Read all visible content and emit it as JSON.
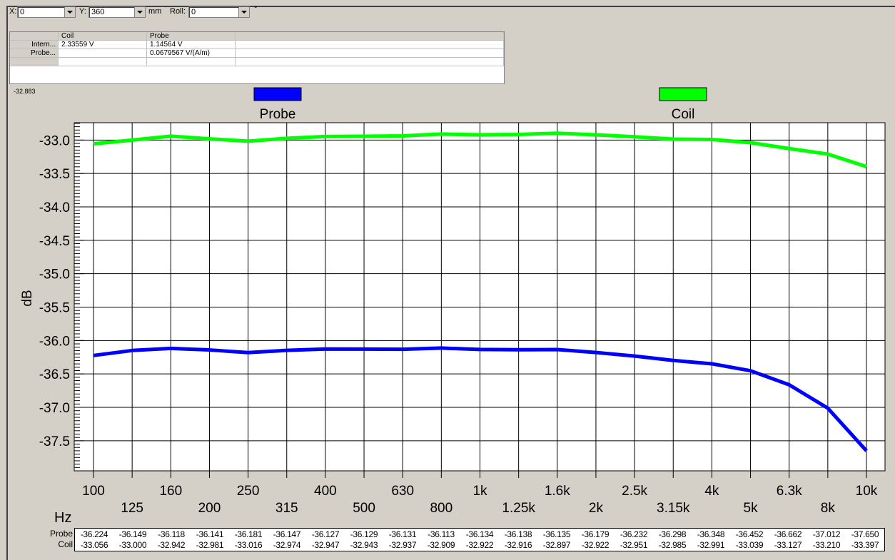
{
  "toolbar": {
    "x_label": "X:",
    "x_value": "0",
    "y_label": "Y:",
    "y_value": "360",
    "y_unit": "mm",
    "roll_label": "Roll:",
    "roll_value": "0",
    "roll_unit": "°"
  },
  "summary_table": {
    "headers": [
      "",
      "Coil",
      "Probe",
      ""
    ],
    "rows": [
      [
        "Intern...",
        "2.33559 V",
        "1.14564 V",
        ""
      ],
      [
        "Probe...",
        "",
        "0.0679567 V/(A/m)",
        ""
      ],
      [
        "",
        "",
        "",
        ""
      ]
    ]
  },
  "corner_value": "-32.883",
  "colors": {
    "probe": "#0000ff",
    "coil": "#00ff00"
  },
  "chart_data": {
    "type": "line",
    "x": [
      "100",
      "125",
      "160",
      "200",
      "250",
      "315",
      "400",
      "500",
      "630",
      "800",
      "1k",
      "1.25k",
      "1.6k",
      "2k",
      "2.5k",
      "3.15k",
      "4k",
      "5k",
      "6.3k",
      "8k",
      "10k"
    ],
    "series": [
      {
        "name": "Probe",
        "values": [
          -36.224,
          -36.149,
          -36.118,
          -36.141,
          -36.181,
          -36.147,
          -36.127,
          -36.129,
          -36.131,
          -36.113,
          -36.134,
          -36.138,
          -36.135,
          -36.179,
          -36.232,
          -36.298,
          -36.348,
          -36.452,
          -36.662,
          -37.012,
          -37.65
        ]
      },
      {
        "name": "Coil",
        "values": [
          -33.056,
          -33.0,
          -32.942,
          -32.981,
          -33.016,
          -32.974,
          -32.947,
          -32.943,
          -32.937,
          -32.909,
          -32.922,
          -32.916,
          -32.897,
          -32.922,
          -32.951,
          -32.985,
          -32.991,
          -33.039,
          -33.127,
          -33.21,
          -33.397
        ]
      }
    ],
    "xlabel": "Hz",
    "ylabel": "dB",
    "yticks": [
      "-33.0",
      "-33.5",
      "-34.0",
      "-34.5",
      "-35.0",
      "-35.5",
      "-36.0",
      "-36.5",
      "-37.0",
      "-37.5"
    ],
    "ylim": [
      -37.95,
      -32.74
    ],
    "grid": true,
    "legend_placement": "top"
  },
  "value_table": {
    "probe_label": "Probe",
    "coil_label": "Coil",
    "probe_values": [
      "-36.224",
      "-36.149",
      "-36.118",
      "-36.141",
      "-36.181",
      "-36.147",
      "-36.127",
      "-36.129",
      "-36.131",
      "-36.113",
      "-36.134",
      "-36.138",
      "-36.135",
      "-36.179",
      "-36.232",
      "-36.298",
      "-36.348",
      "-36.452",
      "-36.662",
      "-37.012",
      "-37.650"
    ],
    "coil_values": [
      "-33.056",
      "-33.000",
      "-32.942",
      "-32.981",
      "-33.016",
      "-32.974",
      "-32.947",
      "-32.943",
      "-32.937",
      "-32.909",
      "-32.922",
      "-32.916",
      "-32.897",
      "-32.922",
      "-32.951",
      "-32.985",
      "-32.991",
      "-33.039",
      "-33.127",
      "-33.210",
      "-33.397"
    ]
  }
}
